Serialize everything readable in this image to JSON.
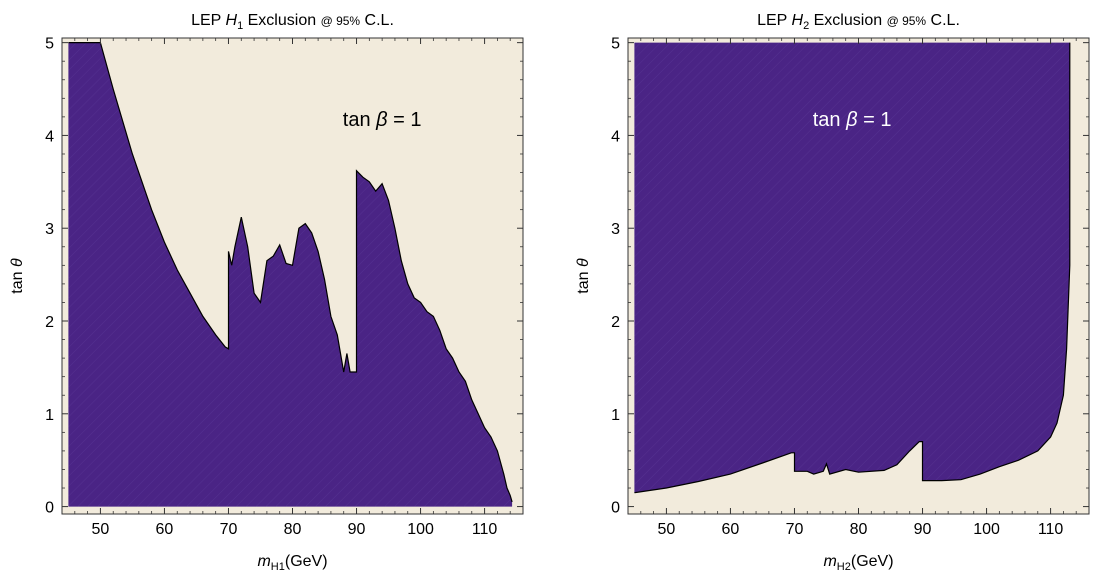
{
  "colors": {
    "excluded_fill": "#4a2485",
    "allowed_fill": "#f2ebdc",
    "boundary_line": "#000000",
    "frame": "#333333"
  },
  "chart_data": [
    {
      "type": "area",
      "title_prefix": "LEP ",
      "title_var": "H",
      "title_sub": "1",
      "title_mid": " Exclusion ",
      "title_small": "@ 95%",
      "title_suffix": " C.L.",
      "xlabel_var": "m",
      "xlabel_sub": "H1",
      "xlabel_unit": "(GeV)",
      "ylabel_prefix": "tan ",
      "ylabel_var": "θ",
      "annotation_prefix": "tan ",
      "annotation_var": "β",
      "annotation_suffix": " = 1",
      "annotation_at": [
        94,
        4.1
      ],
      "xlim": [
        44,
        116
      ],
      "ylim": [
        -0.08,
        5.05
      ],
      "xticks": [
        "50",
        "60",
        "70",
        "80",
        "90",
        "100",
        "110"
      ],
      "yticks": [
        "0",
        "1",
        "2",
        "3",
        "4",
        "5"
      ],
      "xtick_values": [
        50,
        60,
        70,
        80,
        90,
        100,
        110
      ],
      "ytick_values": [
        0,
        1,
        2,
        3,
        4,
        5
      ],
      "excluded_region": "below",
      "boundary": [
        [
          45,
          5.0
        ],
        [
          50,
          5.0
        ],
        [
          52,
          4.5
        ],
        [
          55,
          3.8
        ],
        [
          58,
          3.2
        ],
        [
          60,
          2.85
        ],
        [
          62,
          2.55
        ],
        [
          64,
          2.3
        ],
        [
          66,
          2.05
        ],
        [
          68,
          1.85
        ],
        [
          69.5,
          1.72
        ],
        [
          70,
          1.7
        ],
        [
          70,
          2.75
        ],
        [
          70.5,
          2.6
        ],
        [
          71,
          2.8
        ],
        [
          72,
          3.12
        ],
        [
          73,
          2.8
        ],
        [
          74,
          2.3
        ],
        [
          75,
          2.2
        ],
        [
          76,
          2.65
        ],
        [
          77,
          2.7
        ],
        [
          78,
          2.82
        ],
        [
          79,
          2.62
        ],
        [
          80,
          2.6
        ],
        [
          81,
          3.0
        ],
        [
          82,
          3.05
        ],
        [
          83,
          2.95
        ],
        [
          84,
          2.75
        ],
        [
          85,
          2.45
        ],
        [
          86,
          2.05
        ],
        [
          87,
          1.85
        ],
        [
          88,
          1.45
        ],
        [
          88.5,
          1.65
        ],
        [
          89,
          1.45
        ],
        [
          90,
          1.45
        ],
        [
          90,
          3.62
        ],
        [
          91,
          3.55
        ],
        [
          92,
          3.5
        ],
        [
          93,
          3.4
        ],
        [
          94,
          3.48
        ],
        [
          95,
          3.3
        ],
        [
          96,
          3.0
        ],
        [
          97,
          2.65
        ],
        [
          98,
          2.4
        ],
        [
          99,
          2.25
        ],
        [
          100,
          2.2
        ],
        [
          101,
          2.1
        ],
        [
          102,
          2.05
        ],
        [
          103,
          1.9
        ],
        [
          104,
          1.7
        ],
        [
          105,
          1.6
        ],
        [
          106,
          1.45
        ],
        [
          107,
          1.35
        ],
        [
          108,
          1.15
        ],
        [
          109,
          1.0
        ],
        [
          110,
          0.85
        ],
        [
          111,
          0.75
        ],
        [
          112,
          0.6
        ],
        [
          113,
          0.35
        ],
        [
          113.5,
          0.2
        ],
        [
          114,
          0.12
        ],
        [
          114.3,
          0.05
        ]
      ]
    },
    {
      "type": "area",
      "title_prefix": "LEP ",
      "title_var": "H",
      "title_sub": "2",
      "title_mid": " Exclusion ",
      "title_small": "@ 95%",
      "title_suffix": " C.L.",
      "xlabel_var": "m",
      "xlabel_sub": "H2",
      "xlabel_unit": "(GeV)",
      "ylabel_prefix": "tan ",
      "ylabel_var": "θ",
      "annotation_prefix": "tan ",
      "annotation_var": "β",
      "annotation_suffix": " = 1",
      "annotation_at": [
        79,
        4.1
      ],
      "xlim": [
        44,
        116
      ],
      "ylim": [
        -0.08,
        5.05
      ],
      "xticks": [
        "50",
        "60",
        "70",
        "80",
        "90",
        "100",
        "110"
      ],
      "yticks": [
        "0",
        "1",
        "2",
        "3",
        "4",
        "5"
      ],
      "xtick_values": [
        50,
        60,
        70,
        80,
        90,
        100,
        110
      ],
      "ytick_values": [
        0,
        1,
        2,
        3,
        4,
        5
      ],
      "excluded_region": "above",
      "boundary": [
        [
          45,
          0.15
        ],
        [
          50,
          0.2
        ],
        [
          55,
          0.27
        ],
        [
          60,
          0.35
        ],
        [
          65,
          0.47
        ],
        [
          69.5,
          0.58
        ],
        [
          70,
          0.58
        ],
        [
          70,
          0.38
        ],
        [
          72,
          0.38
        ],
        [
          73,
          0.35
        ],
        [
          74.5,
          0.38
        ],
        [
          75,
          0.46
        ],
        [
          75.5,
          0.35
        ],
        [
          78,
          0.4
        ],
        [
          80,
          0.37
        ],
        [
          84,
          0.39
        ],
        [
          86,
          0.45
        ],
        [
          88,
          0.6
        ],
        [
          89.5,
          0.7
        ],
        [
          90,
          0.7
        ],
        [
          90,
          0.28
        ],
        [
          93,
          0.28
        ],
        [
          96,
          0.29
        ],
        [
          99,
          0.35
        ],
        [
          102,
          0.43
        ],
        [
          105,
          0.5
        ],
        [
          108,
          0.6
        ],
        [
          110,
          0.75
        ],
        [
          111,
          0.9
        ],
        [
          112,
          1.2
        ],
        [
          112.5,
          1.7
        ],
        [
          113,
          2.6
        ],
        [
          113,
          5.0
        ]
      ]
    }
  ]
}
